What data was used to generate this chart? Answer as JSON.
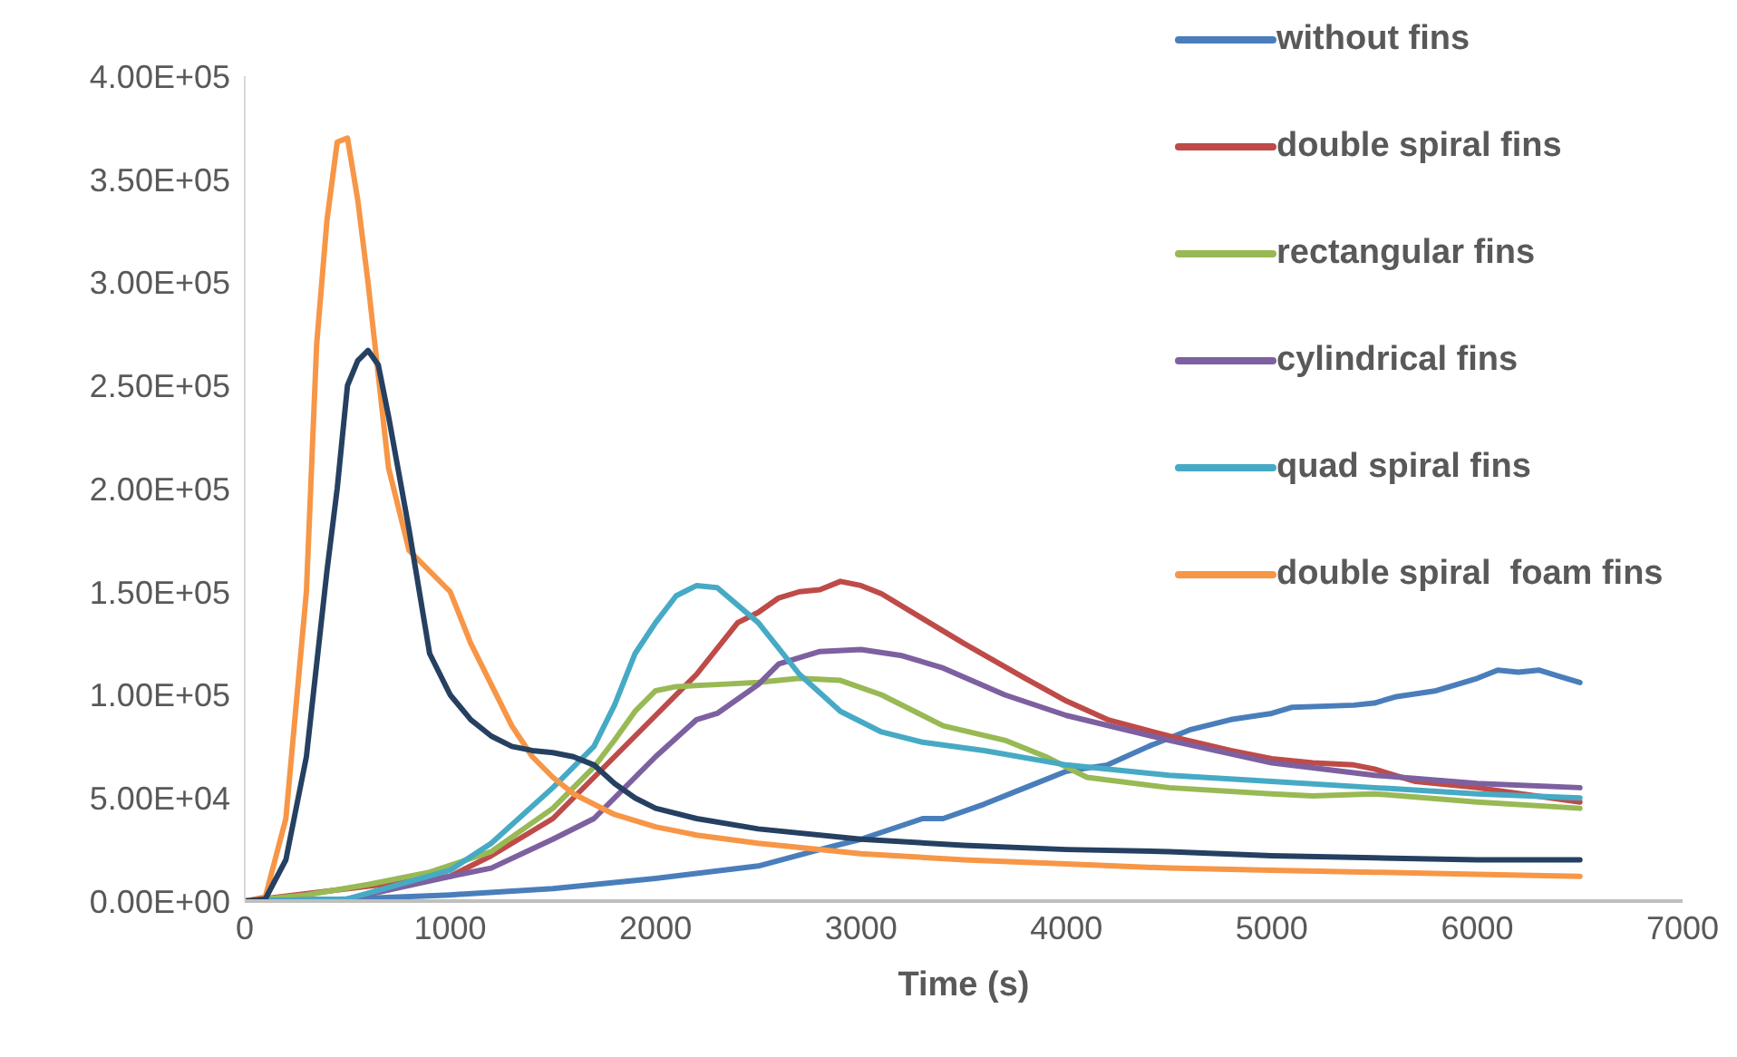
{
  "chart_data": {
    "type": "line",
    "xlabel": "Time (s)",
    "xlim": [
      0,
      7000
    ],
    "xticks": [
      0,
      1000,
      2000,
      3000,
      4000,
      5000,
      6000,
      7000
    ],
    "ylim": [
      0,
      400000
    ],
    "yticks": [
      {
        "value": 0,
        "label": "0.00E+00"
      },
      {
        "value": 50000,
        "label": "5.00E+04"
      },
      {
        "value": 100000,
        "label": "1.00E+05"
      },
      {
        "value": 150000,
        "label": "1.50E+05"
      },
      {
        "value": 200000,
        "label": "2.00E+05"
      },
      {
        "value": 250000,
        "label": "2.50E+05"
      },
      {
        "value": 300000,
        "label": "3.00E+05"
      },
      {
        "value": 350000,
        "label": "3.50E+05"
      },
      {
        "value": 400000,
        "label": "4.00E+05"
      }
    ],
    "grid": false,
    "legend": "top right",
    "marker": "none",
    "line_style": "solid",
    "series": [
      {
        "name": "without fins",
        "color": "#4a7ebb",
        "x": [
          0,
          500,
          1000,
          1500,
          2000,
          2500,
          2800,
          3000,
          3300,
          3400,
          3600,
          3800,
          4000,
          4200,
          4400,
          4600,
          4800,
          5000,
          5100,
          5400,
          5500,
          5600,
          5800,
          6000,
          6100,
          6200,
          6300,
          6400,
          6500
        ],
        "values": [
          0,
          1000,
          3000,
          6000,
          11000,
          17000,
          25000,
          30000,
          40000,
          40000,
          47000,
          55000,
          63000,
          66000,
          75000,
          83000,
          88000,
          91000,
          94000,
          95000,
          96000,
          99000,
          102000,
          108000,
          112000,
          111000,
          112000,
          109000,
          106000
        ]
      },
      {
        "name": "double spiral fins",
        "color": "#be4b48",
        "x": [
          0,
          1000,
          1200,
          1500,
          1700,
          2000,
          2200,
          2400,
          2500,
          2600,
          2700,
          2800,
          2900,
          3000,
          3100,
          3300,
          3500,
          3800,
          4000,
          4200,
          4500,
          4800,
          5000,
          5200,
          5400,
          5500,
          5700,
          6000,
          6500
        ],
        "values": [
          0,
          12000,
          22000,
          40000,
          60000,
          90000,
          110000,
          135000,
          140000,
          147000,
          150000,
          151000,
          155000,
          153000,
          149000,
          137000,
          125000,
          108000,
          97000,
          88000,
          80000,
          73000,
          69000,
          67000,
          66000,
          64000,
          58000,
          55000,
          48000
        ]
      },
      {
        "name": "rectangular fins",
        "color": "#98b954",
        "x": [
          0,
          300,
          600,
          900,
          1200,
          1500,
          1700,
          1800,
          1900,
          2000,
          2100,
          2300,
          2500,
          2700,
          2900,
          3100,
          3400,
          3700,
          3900,
          4100,
          4500,
          5000,
          5200,
          5500,
          6000,
          6500
        ],
        "values": [
          0,
          3000,
          8000,
          14000,
          24000,
          45000,
          65000,
          78000,
          92000,
          102000,
          104000,
          105000,
          106000,
          108000,
          107000,
          100000,
          85000,
          78000,
          70000,
          60000,
          55000,
          52000,
          51000,
          52000,
          48000,
          45000
        ]
      },
      {
        "name": "cylindrical fins",
        "color": "#7d60a0",
        "x": [
          0,
          500,
          1000,
          1200,
          1500,
          1700,
          2000,
          2200,
          2300,
          2500,
          2600,
          2800,
          3000,
          3200,
          3400,
          3700,
          4000,
          4500,
          5000,
          5500,
          6000,
          6500
        ],
        "values": [
          0,
          1000,
          12000,
          16000,
          30000,
          40000,
          70000,
          88000,
          91000,
          105000,
          115000,
          121000,
          122000,
          119000,
          113000,
          100000,
          90000,
          78000,
          67000,
          61000,
          57000,
          55000
        ]
      },
      {
        "name": "quad spiral fins",
        "color": "#46aac5",
        "x": [
          0,
          500,
          1000,
          1200,
          1500,
          1700,
          1800,
          1900,
          2000,
          2100,
          2200,
          2300,
          2500,
          2700,
          2900,
          3100,
          3300,
          3600,
          4000,
          4500,
          5000,
          5500,
          6000,
          6500
        ],
        "values": [
          0,
          1000,
          15000,
          28000,
          55000,
          75000,
          95000,
          120000,
          135000,
          148000,
          153000,
          152000,
          135000,
          110000,
          92000,
          82000,
          77000,
          73000,
          66000,
          61000,
          58000,
          55000,
          52000,
          50000
        ]
      },
      {
        "name": "double spiral  foam fins",
        "color": "#f79646",
        "x": [
          0,
          100,
          200,
          300,
          350,
          400,
          450,
          500,
          550,
          600,
          700,
          800,
          900,
          1000,
          1100,
          1200,
          1300,
          1400,
          1500,
          1600,
          1800,
          2000,
          2200,
          2500,
          3000,
          3500,
          4000,
          4500,
          5000,
          5500,
          6000,
          6500
        ],
        "values": [
          0,
          2000,
          40000,
          150000,
          270000,
          330000,
          368000,
          370000,
          340000,
          300000,
          210000,
          170000,
          160000,
          150000,
          125000,
          105000,
          85000,
          70000,
          60000,
          52000,
          42000,
          36000,
          32000,
          28000,
          23000,
          20000,
          18000,
          16000,
          15000,
          14000,
          13000,
          12000
        ]
      },
      {
        "color": "#254061",
        "x": [
          0,
          100,
          200,
          300,
          400,
          450,
          500,
          550,
          600,
          650,
          700,
          800,
          900,
          1000,
          1100,
          1200,
          1300,
          1400,
          1500,
          1600,
          1700,
          1800,
          1900,
          2000,
          2200,
          2500,
          3000,
          3500,
          4000,
          4500,
          5000,
          5500,
          6000,
          6500
        ],
        "values": [
          0,
          1000,
          20000,
          70000,
          160000,
          200000,
          250000,
          262000,
          267000,
          260000,
          235000,
          180000,
          120000,
          100000,
          88000,
          80000,
          75000,
          73000,
          72000,
          70000,
          66000,
          57000,
          50000,
          45000,
          40000,
          35000,
          30000,
          27000,
          25000,
          24000,
          22000,
          21000,
          20000,
          20000
        ]
      }
    ]
  }
}
